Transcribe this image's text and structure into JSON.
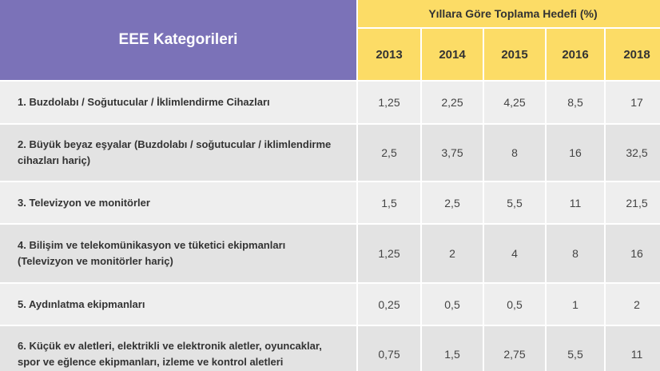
{
  "table": {
    "category_header": "EEE Kategorileri",
    "group_header": "Yıllara Göre Toplama Hedefi (%)",
    "years": [
      "2013",
      "2014",
      "2015",
      "2016",
      "2018"
    ],
    "rows": [
      {
        "label": "1. Buzdolabı / Soğutucular / İklimlendirme Cihazları",
        "values": [
          "1,25",
          "2,25",
          "4,25",
          "8,5",
          "17"
        ]
      },
      {
        "label": "2. Büyük beyaz eşyalar (Buzdolabı / soğutucular / iklimlendirme cihazları hariç)",
        "values": [
          "2,5",
          "3,75",
          "8",
          "16",
          "32,5"
        ]
      },
      {
        "label": "3. Televizyon ve monitörler",
        "values": [
          "1,5",
          "2,5",
          "5,5",
          "11",
          "21,5"
        ]
      },
      {
        "label": "4. Bilişim ve telekomünikasyon ve tüketici ekipmanları (Televizyon ve monitörler hariç)",
        "values": [
          "1,25",
          "2",
          "4",
          "8",
          "16"
        ]
      },
      {
        "label": "5. Aydınlatma ekipmanları",
        "values": [
          "0,25",
          "0,5",
          "0,5",
          "1",
          "2"
        ]
      },
      {
        "label": "6. Küçük ev aletleri, elektrikli ve elektronik aletler, oyuncaklar, spor ve eğlence ekipmanları, izleme ve kontrol aletleri",
        "values": [
          "0,75",
          "1,5",
          "2,75",
          "5,5",
          "11"
        ]
      }
    ],
    "colors": {
      "header_purple": "#7b72b8",
      "header_yellow": "#fcdc66",
      "row_light": "#eeeeee",
      "row_dark": "#e3e3e3"
    }
  }
}
